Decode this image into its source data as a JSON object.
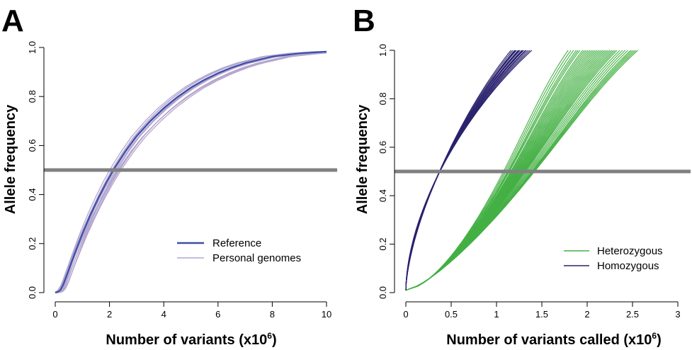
{
  "panels": [
    {
      "letter": "A",
      "xlabel_main": "Number of variants (x10",
      "xlabel_sup": "6",
      "xlabel_end": ")",
      "ylabel": "Allele frequency",
      "legend_items": [
        "Reference",
        "Personal genomes"
      ]
    },
    {
      "letter": "B",
      "xlabel_main": "Number of variants called (x10",
      "xlabel_sup": "6",
      "xlabel_end": ")",
      "ylabel": "Allele frequency",
      "legend_items": [
        "Heterozygous",
        "Homozygous"
      ]
    }
  ],
  "chart_data": [
    {
      "type": "line",
      "panel": "A",
      "xlim": [
        0,
        10
      ],
      "ylim": [
        0,
        1
      ],
      "x_ticks": [
        0,
        2,
        4,
        6,
        8,
        10
      ],
      "x_tick_labels": [
        "0",
        "2",
        "4",
        "6",
        "8",
        "10"
      ],
      "y_ticks": [
        0,
        0.2,
        0.4,
        0.6,
        0.8,
        1.0
      ],
      "y_tick_labels": [
        "0.0",
        "0.2",
        "0.4",
        "0.6",
        "0.8",
        "1.0"
      ],
      "hline": 0.5,
      "legend_position": "bottom-right",
      "series": [
        {
          "name": "Reference",
          "color": "#3a4fa8",
          "x": [
            0,
            0.1,
            0.2,
            0.3,
            0.5,
            0.7,
            1.0,
            1.3,
            1.6,
            1.9,
            2.2,
            2.6,
            3.0,
            3.5,
            4.0,
            4.5,
            5.0,
            5.5,
            6.0,
            6.5,
            7.0,
            8.0,
            9.0,
            10.0
          ],
          "y": [
            0.0,
            0.003,
            0.012,
            0.034,
            0.094,
            0.154,
            0.24,
            0.318,
            0.388,
            0.452,
            0.51,
            0.578,
            0.638,
            0.699,
            0.752,
            0.797,
            0.836,
            0.868,
            0.895,
            0.918,
            0.936,
            0.963,
            0.976,
            0.983
          ]
        },
        {
          "name": "Personal genomes",
          "color": "#b5a6cf",
          "lines": [
            {
              "shift": -0.08,
              "scale": 0.97
            },
            {
              "shift": -0.04,
              "scale": 1.0
            },
            {
              "shift": 0.0,
              "scale": 1.03
            },
            {
              "shift": 0.05,
              "scale": 0.94
            },
            {
              "shift": 0.09,
              "scale": 0.99
            },
            {
              "shift": 0.13,
              "scale": 0.96
            },
            {
              "shift": -0.02,
              "scale": 0.92
            },
            {
              "shift": 0.17,
              "scale": 1.02
            },
            {
              "shift": 0.07,
              "scale": 1.05
            },
            {
              "shift": -0.06,
              "scale": 1.04
            },
            {
              "shift": 0.11,
              "scale": 0.93
            },
            {
              "shift": 0.02,
              "scale": 0.98
            }
          ]
        }
      ]
    },
    {
      "type": "line",
      "panel": "B",
      "xlim": [
        0,
        3
      ],
      "ylim": [
        0,
        1
      ],
      "x_ticks": [
        0,
        0.5,
        1,
        1.5,
        2,
        2.5,
        3
      ],
      "x_tick_labels": [
        "0",
        "0.5",
        "1",
        "1.5",
        "2",
        "2.5",
        "3"
      ],
      "y_ticks": [
        0,
        0.2,
        0.4,
        0.6,
        0.8,
        1.0
      ],
      "y_tick_labels": [
        "0.0",
        "0.2",
        "0.4",
        "0.6",
        "0.8",
        "1.0"
      ],
      "hline": 0.5,
      "legend_position": "bottom-right",
      "series": [
        {
          "name": "Heterozygous",
          "color": "#44b044",
          "y_start": 0.01,
          "endpoints_x": [
            1.79,
            1.82,
            1.85,
            1.88,
            1.9,
            1.92,
            1.95,
            1.97,
            1.99,
            2.01,
            2.03,
            2.05,
            2.07,
            2.09,
            2.11,
            2.13,
            2.15,
            2.17,
            2.19,
            2.21,
            2.23,
            2.25,
            2.27,
            2.29,
            2.31,
            2.33,
            2.36,
            2.39,
            2.42,
            2.45,
            2.48,
            2.5,
            2.52,
            2.54,
            2.56
          ]
        },
        {
          "name": "Homozygous",
          "color": "#2a236e",
          "y_start": 0.01,
          "endpoints_x": [
            1.16,
            1.18,
            1.2,
            1.21,
            1.22,
            1.24,
            1.25,
            1.26,
            1.28,
            1.29,
            1.3,
            1.32,
            1.33,
            1.35,
            1.37,
            1.39
          ]
        }
      ]
    }
  ]
}
